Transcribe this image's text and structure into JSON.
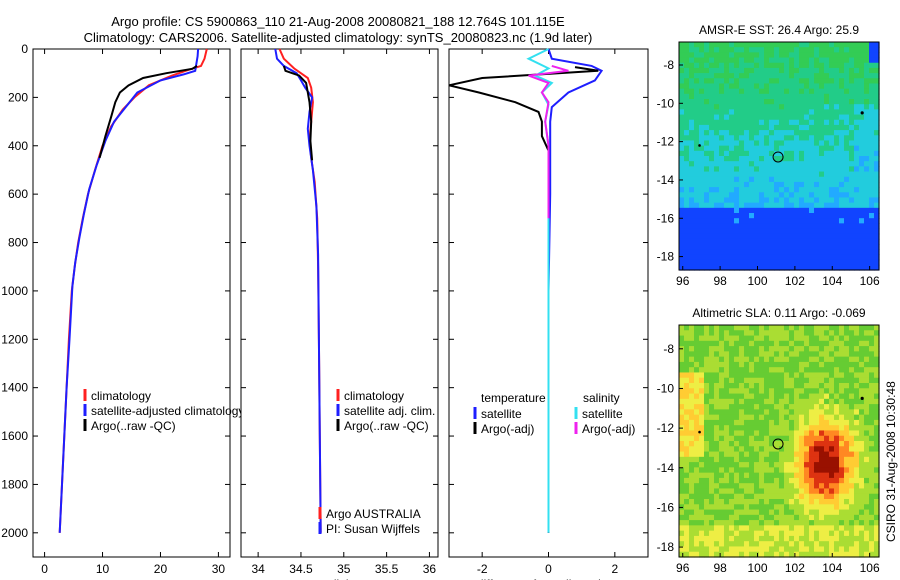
{
  "header": {
    "line1": "Argo profile: CS 5900863_110 21-Aug-2008 20080821_188 12.764S 101.115E",
    "line2": "Climatology: CARS2006. Satellite-adjusted climatology: synTS_20080823.nc (1.9d later)"
  },
  "side_caption": "CSIRO 31-Aug-2008 10:30:48",
  "colors": {
    "red": "#ff2020",
    "blue": "#1e1eff",
    "black": "#000000",
    "cyan": "#33e0f0",
    "magenta": "#ee22ee"
  },
  "chart_data": [
    {
      "type": "line",
      "id": "temperature",
      "xlabel": "temperature",
      "xlim": [
        -2,
        32
      ],
      "ylim": [
        0,
        2100
      ],
      "xticks": [
        0,
        10,
        20,
        30
      ],
      "yticks": [
        0,
        200,
        400,
        600,
        800,
        1000,
        1200,
        1400,
        1600,
        1800,
        2000
      ],
      "legend": [
        "climatology",
        "satellite-adjusted climatology",
        "Argo(..raw -QC)"
      ],
      "series": [
        {
          "name": "climatology",
          "color": "red",
          "points": [
            [
              28,
              0
            ],
            [
              27.6,
              40
            ],
            [
              27,
              70
            ],
            [
              25,
              85
            ],
            [
              22,
              110
            ],
            [
              18,
              150
            ],
            [
              15.5,
              200
            ],
            [
              13.5,
              250
            ],
            [
              11.5,
              320
            ],
            [
              10,
              400
            ],
            [
              8.7,
              500
            ],
            [
              7.5,
              600
            ],
            [
              6.6,
              700
            ],
            [
              5.8,
              800
            ],
            [
              5.2,
              900
            ],
            [
              4.7,
              1000
            ],
            [
              4.2,
              1200
            ],
            [
              3.8,
              1400
            ],
            [
              3.4,
              1600
            ],
            [
              3,
              1800
            ],
            [
              2.6,
              2000
            ]
          ]
        },
        {
          "name": "satellite-adjusted climatology",
          "color": "blue",
          "points": [
            [
              26.5,
              0
            ],
            [
              26.4,
              30
            ],
            [
              26.2,
              60
            ],
            [
              26,
              90
            ],
            [
              24,
              105
            ],
            [
              20,
              130
            ],
            [
              16,
              180
            ],
            [
              14,
              240
            ],
            [
              12,
              300
            ],
            [
              10.5,
              380
            ],
            [
              9,
              480
            ],
            [
              7.7,
              580
            ],
            [
              6.8,
              680
            ],
            [
              6,
              780
            ],
            [
              5.3,
              880
            ],
            [
              4.8,
              980
            ],
            [
              4.3,
              1200
            ],
            [
              3.8,
              1400
            ],
            [
              3.4,
              1600
            ],
            [
              3,
              1800
            ],
            [
              2.6,
              2000
            ]
          ]
        },
        {
          "name": "Argo(..raw -QC)",
          "color": "black",
          "points": [
            [
              26.3,
              70
            ],
            [
              25.5,
              82
            ],
            [
              21,
              100
            ],
            [
              17,
              120
            ],
            [
              14.5,
              150
            ],
            [
              13,
              180
            ],
            [
              12.2,
              220
            ],
            [
              11.5,
              280
            ],
            [
              10.5,
              360
            ],
            [
              9.5,
              450
            ]
          ]
        }
      ]
    },
    {
      "type": "line",
      "id": "salinity",
      "xlabel": "salinity",
      "xlim": [
        33.8,
        36.1
      ],
      "ylim": [
        0,
        2100
      ],
      "xticks": [
        34,
        34.5,
        35,
        35.5,
        36
      ],
      "yticks": [
        0,
        200,
        400,
        600,
        800,
        1000,
        1200,
        1400,
        1600,
        1800,
        2000
      ],
      "legend": [
        "climatology",
        "satellite adj. clim.",
        "Argo(..raw -QC)"
      ],
      "notes": [
        "Argo AUSTRALIA",
        "PI: Susan Wijffels"
      ],
      "series": [
        {
          "name": "climatology",
          "color": "red",
          "points": [
            [
              34.25,
              0
            ],
            [
              34.3,
              40
            ],
            [
              34.42,
              80
            ],
            [
              34.58,
              120
            ],
            [
              34.62,
              160
            ],
            [
              34.64,
              220
            ],
            [
              34.62,
              300
            ],
            [
              34.6,
              380
            ],
            [
              34.62,
              450
            ],
            [
              34.66,
              550
            ],
            [
              34.69,
              700
            ],
            [
              34.7,
              900
            ],
            [
              34.71,
              1200
            ],
            [
              34.72,
              1600
            ],
            [
              34.73,
              2000
            ]
          ]
        },
        {
          "name": "satellite adj. clim.",
          "color": "blue",
          "points": [
            [
              34.2,
              0
            ],
            [
              34.22,
              40
            ],
            [
              34.3,
              70
            ],
            [
              34.45,
              100
            ],
            [
              34.5,
              130
            ],
            [
              34.55,
              160
            ],
            [
              34.63,
              200
            ],
            [
              34.6,
              260
            ],
            [
              34.58,
              330
            ],
            [
              34.6,
              400
            ],
            [
              34.64,
              500
            ],
            [
              34.68,
              650
            ],
            [
              34.7,
              850
            ],
            [
              34.71,
              1200
            ],
            [
              34.72,
              1600
            ],
            [
              34.73,
              2000
            ]
          ]
        },
        {
          "name": "Argo(..raw -QC)",
          "color": "black",
          "points": [
            [
              34.3,
              70
            ],
            [
              34.32,
              90
            ],
            [
              34.48,
              110
            ],
            [
              34.56,
              140
            ],
            [
              34.58,
              180
            ],
            [
              34.6,
              220
            ],
            [
              34.62,
              300
            ],
            [
              34.61,
              380
            ],
            [
              34.63,
              460
            ]
          ]
        }
      ]
    },
    {
      "type": "line",
      "id": "difference",
      "xlabel": "difference from climatology",
      "xlim": [
        -3,
        3
      ],
      "ylim": [
        0,
        2100
      ],
      "xticks": [
        -2,
        0,
        2
      ],
      "yticks": [
        0,
        200,
        400,
        600,
        800,
        1000,
        1200,
        1400,
        1600,
        1800,
        2000
      ],
      "legend_headers": [
        "temperature",
        "salinity"
      ],
      "legend_left": [
        "satellite",
        "Argo(-adj)"
      ],
      "legend_right": [
        "satellite",
        "Argo(-adj)"
      ],
      "series": [
        {
          "name": "temperature satellite",
          "color": "blue",
          "points": [
            [
              0,
              0
            ],
            [
              0.1,
              40
            ],
            [
              1.3,
              70
            ],
            [
              1.6,
              90
            ],
            [
              1.4,
              130
            ],
            [
              0.6,
              180
            ],
            [
              0.1,
              240
            ],
            [
              0.05,
              300
            ],
            [
              0.05,
              400
            ],
            [
              0.05,
              600
            ],
            [
              0,
              1000
            ],
            [
              0,
              1600
            ],
            [
              0,
              2000
            ]
          ]
        },
        {
          "name": "temperature Argo(-adj)",
          "color": "black",
          "points": [
            [
              0.8,
              75
            ],
            [
              1.5,
              90
            ],
            [
              -2,
              120
            ],
            [
              -3,
              150
            ],
            [
              -2.1,
              180
            ],
            [
              -1,
              220
            ],
            [
              -0.3,
              260
            ],
            [
              -0.2,
              300
            ],
            [
              -0.2,
              360
            ],
            [
              0,
              420
            ],
            [
              0,
              500
            ],
            [
              0,
              1000
            ],
            [
              0,
              1600
            ],
            [
              0,
              2000
            ]
          ]
        },
        {
          "name": "salinity satellite",
          "color": "cyan",
          "points": [
            [
              0,
              0
            ],
            [
              -0.6,
              40
            ],
            [
              0,
              80
            ],
            [
              -0.4,
              110
            ],
            [
              0.1,
              140
            ],
            [
              -0.2,
              180
            ],
            [
              0,
              230
            ],
            [
              -0.1,
              300
            ],
            [
              0,
              400
            ],
            [
              0,
              800
            ],
            [
              0,
              1400
            ],
            [
              0,
              2000
            ]
          ]
        },
        {
          "name": "salinity Argo(-adj)",
          "color": "magenta",
          "points": [
            [
              0.1,
              70
            ],
            [
              0.6,
              90
            ],
            [
              -0.6,
              110
            ],
            [
              0,
              140
            ],
            [
              -0.2,
              180
            ],
            [
              0,
              220
            ],
            [
              -0.1,
              300
            ],
            [
              0,
              400
            ],
            [
              0,
              700
            ]
          ]
        }
      ]
    },
    {
      "type": "heatmap",
      "id": "sst-map",
      "title": "AMSR-E SST: 26.4 Argo: 25.9",
      "xlim": [
        95.8,
        106.5
      ],
      "ylim": [
        -18.7,
        -6.8
      ],
      "xticks": [
        96,
        98,
        100,
        102,
        104,
        106
      ],
      "yticks": [
        -8,
        -10,
        -12,
        -14,
        -16,
        -18
      ],
      "argo_position": [
        101.1,
        -12.8
      ],
      "palette": [
        "#1144ff",
        "#22aaff",
        "#22ccdd",
        "#22cc88",
        "#33cc55",
        "#44cc33",
        "#66dd22"
      ]
    },
    {
      "type": "heatmap",
      "id": "sla-map",
      "title": "Altimetric SLA: 0.11 Argo: -0.069",
      "xlim": [
        95.8,
        106.5
      ],
      "ylim": [
        -18.5,
        -6.8
      ],
      "xticks": [
        96,
        98,
        100,
        102,
        104,
        106
      ],
      "yticks": [
        -8,
        -10,
        -12,
        -14,
        -16,
        -18
      ],
      "argo_position": [
        101.1,
        -12.8
      ],
      "palette": [
        "#33bb33",
        "#66cc33",
        "#aadd33",
        "#eeee44",
        "#ffcc33",
        "#ff8822",
        "#dd3311",
        "#991100"
      ]
    }
  ]
}
